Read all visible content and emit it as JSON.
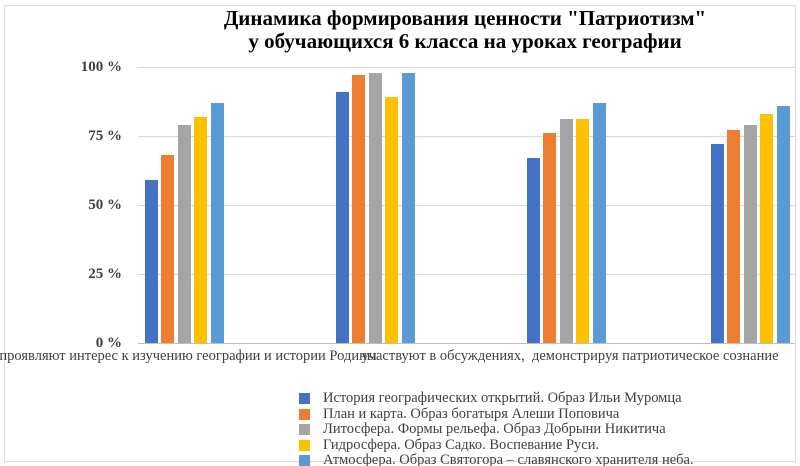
{
  "window": {
    "background_color": "#ffffff",
    "frame_border_color": "#d9d9d9"
  },
  "chart_data": {
    "type": "bar",
    "title": "Динамика формирования ценности \"Патриотизм\" у обучающихся 6 класса на уроках географии",
    "title_lines": [
      "Динамика формирования ценности \"Патриотизм\"",
      "у обучающихся 6 класса на уроках географии"
    ],
    "categories": [
      "проявляют интерес к изучению географии и истории Родины",
      "",
      "участвуют в обсуждениях,  демонстрируя патриотическое сознание",
      ""
    ],
    "series": [
      {
        "name": "История географических открытий. Образ Ильи Муромца",
        "color": "#4472C4",
        "values": [
          59,
          91,
          67,
          72
        ]
      },
      {
        "name": "План и карта. Образ богатыря Алеши Поповича",
        "color": "#ED7D31",
        "values": [
          68,
          97,
          76,
          77
        ]
      },
      {
        "name": "Литосфера. Формы рельефа. Образ Добрыни Никитича",
        "color": "#A5A5A5",
        "values": [
          79,
          98,
          81,
          79
        ]
      },
      {
        "name": "Гидросфера. Образ Садко. Воспевание Руси.",
        "color": "#FFC000",
        "values": [
          82,
          89,
          81,
          83
        ]
      },
      {
        "name": "Атмосфера. Образ Святогора – славянского хранителя неба.",
        "color": "#5B9BD5",
        "values": [
          87,
          98,
          87,
          86
        ]
      }
    ],
    "y_ticks": [
      {
        "value": 0,
        "label": "0 %"
      },
      {
        "value": 25,
        "label": "25 %"
      },
      {
        "value": 50,
        "label": "50 %"
      },
      {
        "value": 75,
        "label": "75 %"
      },
      {
        "value": 100,
        "label": "100 %"
      }
    ],
    "ylim": [
      0,
      100
    ],
    "grid": true,
    "legend_position": "bottom",
    "axis_text_color": "#404040",
    "gridline_color": "#d9d9d9",
    "axis_line_color": "#bfbfbf"
  }
}
